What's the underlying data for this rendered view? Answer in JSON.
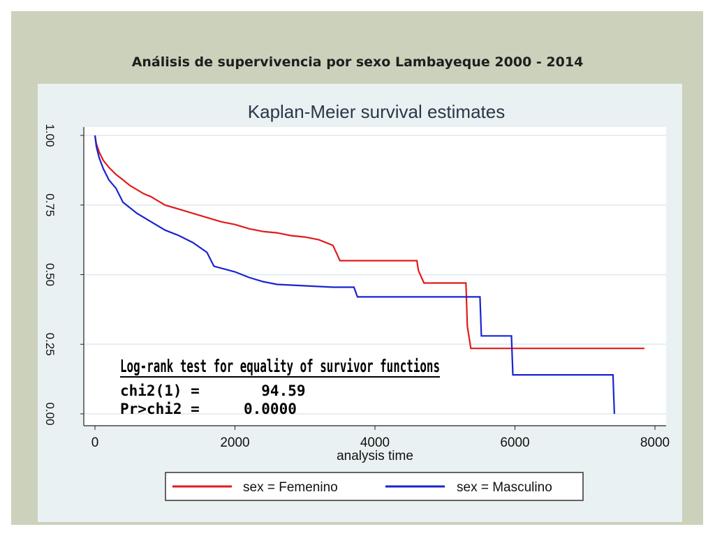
{
  "slide": {
    "title": "Análisis de supervivencia por sexo Lambayeque 2000 - 2014"
  },
  "chart_data": {
    "type": "line",
    "title": "Kaplan-Meier survival estimates",
    "xlabel": "analysis time",
    "ylabel": "",
    "xlim": [
      0,
      8000
    ],
    "ylim": [
      0,
      1
    ],
    "x_ticks": [
      "0",
      "2000",
      "4000",
      "6000",
      "8000"
    ],
    "y_ticks": [
      "0.00",
      "0.25",
      "0.50",
      "0.75",
      "1.00"
    ],
    "grid": true,
    "legend_position": "bottom",
    "series": [
      {
        "name": "sex = Femenino",
        "color": "#e11b1b",
        "points": [
          [
            0,
            1.0
          ],
          [
            20,
            0.97
          ],
          [
            60,
            0.94
          ],
          [
            120,
            0.91
          ],
          [
            200,
            0.885
          ],
          [
            300,
            0.86
          ],
          [
            400,
            0.84
          ],
          [
            500,
            0.82
          ],
          [
            600,
            0.805
          ],
          [
            700,
            0.79
          ],
          [
            800,
            0.78
          ],
          [
            900,
            0.765
          ],
          [
            1000,
            0.75
          ],
          [
            1200,
            0.735
          ],
          [
            1400,
            0.72
          ],
          [
            1600,
            0.705
          ],
          [
            1800,
            0.69
          ],
          [
            2000,
            0.68
          ],
          [
            2200,
            0.665
          ],
          [
            2400,
            0.655
          ],
          [
            2600,
            0.65
          ],
          [
            2800,
            0.64
          ],
          [
            3000,
            0.635
          ],
          [
            3200,
            0.625
          ],
          [
            3400,
            0.605
          ],
          [
            3500,
            0.55
          ],
          [
            4000,
            0.55
          ],
          [
            4600,
            0.55
          ],
          [
            4620,
            0.515
          ],
          [
            4700,
            0.47
          ],
          [
            5300,
            0.47
          ],
          [
            5320,
            0.315
          ],
          [
            5370,
            0.235
          ],
          [
            7850,
            0.235
          ]
        ]
      },
      {
        "name": "sex = Masculino",
        "color": "#1a23d0",
        "points": [
          [
            0,
            1.0
          ],
          [
            20,
            0.96
          ],
          [
            60,
            0.92
          ],
          [
            120,
            0.88
          ],
          [
            200,
            0.84
          ],
          [
            300,
            0.81
          ],
          [
            400,
            0.76
          ],
          [
            500,
            0.74
          ],
          [
            600,
            0.72
          ],
          [
            800,
            0.69
          ],
          [
            1000,
            0.66
          ],
          [
            1200,
            0.64
          ],
          [
            1400,
            0.615
          ],
          [
            1600,
            0.58
          ],
          [
            1700,
            0.53
          ],
          [
            2000,
            0.51
          ],
          [
            2200,
            0.49
          ],
          [
            2400,
            0.475
          ],
          [
            2600,
            0.465
          ],
          [
            3000,
            0.46
          ],
          [
            3400,
            0.455
          ],
          [
            3700,
            0.455
          ],
          [
            3750,
            0.42
          ],
          [
            4500,
            0.42
          ],
          [
            5500,
            0.42
          ],
          [
            5520,
            0.28
          ],
          [
            5950,
            0.28
          ],
          [
            5970,
            0.14
          ],
          [
            7400,
            0.14
          ],
          [
            7420,
            0.0
          ]
        ]
      }
    ],
    "annotation": {
      "heading": "Log-rank test for equality of survivor functions",
      "line1": "chi2(1) =       94.59",
      "line2": "Pr>chi2 =     0.0000"
    }
  }
}
